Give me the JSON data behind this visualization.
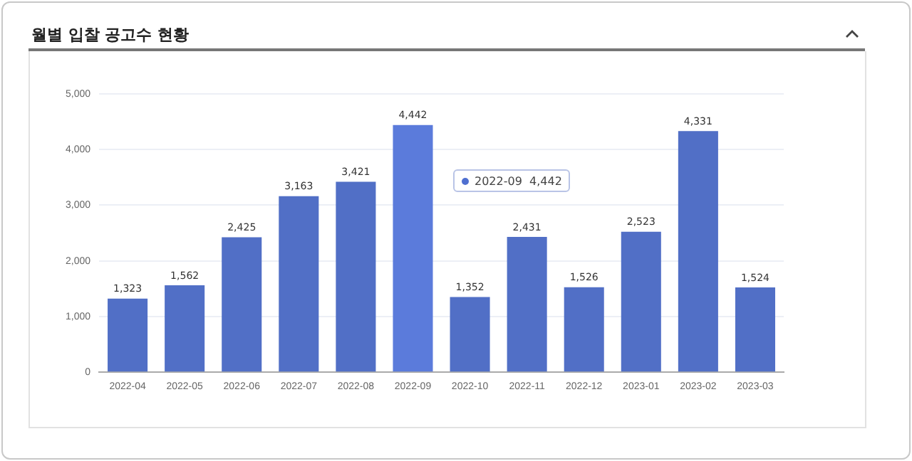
{
  "chart_data": {
    "type": "bar",
    "title": "월별 입찰 공고수 현황",
    "categories": [
      "2022-04",
      "2022-05",
      "2022-06",
      "2022-07",
      "2022-08",
      "2022-09",
      "2022-10",
      "2022-11",
      "2022-12",
      "2023-01",
      "2023-02",
      "2023-03"
    ],
    "values": [
      1323,
      1562,
      2425,
      3163,
      3421,
      4442,
      1352,
      2431,
      1526,
      2523,
      4331,
      1524
    ],
    "colors": [
      "#516fc6",
      "#516fc6",
      "#516fc6",
      "#516fc6",
      "#516fc6",
      "#5b7bdb",
      "#516fc6",
      "#516fc6",
      "#516fc6",
      "#516fc6",
      "#516fc6",
      "#516fc6"
    ],
    "ylim": [
      0,
      5000
    ],
    "yticks": [
      {
        "value": 0,
        "label": "0"
      },
      {
        "value": 1000,
        "label": "1,000"
      },
      {
        "value": 2000,
        "label": "2,000"
      },
      {
        "value": 3000,
        "label": "3,000"
      },
      {
        "value": 4000,
        "label": "4,000"
      },
      {
        "value": 5000,
        "label": "5,000"
      }
    ],
    "value_labels": [
      "1,323",
      "1,562",
      "2,425",
      "3,163",
      "3,421",
      "4,442",
      "1,352",
      "2,431",
      "1,526",
      "2,523",
      "4,331",
      "1,524"
    ],
    "grid": "y",
    "annotations": [
      "2022-09  4,442"
    ]
  }
}
